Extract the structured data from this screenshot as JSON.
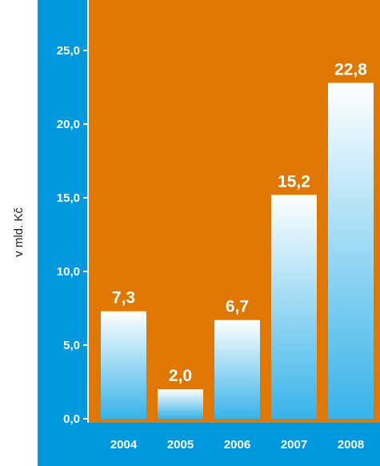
{
  "chart_data": {
    "type": "bar",
    "title": "",
    "xlabel": "",
    "ylabel": "v mld. Kč",
    "categories": [
      "2004",
      "2005",
      "2006",
      "2007",
      "2008"
    ],
    "values": [
      7.3,
      2.0,
      6.7,
      15.2,
      22.8
    ],
    "value_labels": [
      "7,3",
      "2,0",
      "6,7",
      "15,2",
      "22,8"
    ],
    "ylim": [
      0,
      25.0
    ],
    "yticks": [
      0,
      5,
      10,
      15,
      20,
      25
    ],
    "ytick_labels": [
      "0,0",
      "5,0",
      "10,0",
      "15,0",
      "20,0",
      "25,0"
    ],
    "grid": false,
    "legend": "none",
    "colors": {
      "plot_background": "#e07700",
      "axis_band": "#0099dd",
      "bar_top": "#ffffff",
      "bar_bottom": "#37b3e9",
      "label_text": "#ffffff",
      "ylabel_text": "#222222"
    }
  }
}
